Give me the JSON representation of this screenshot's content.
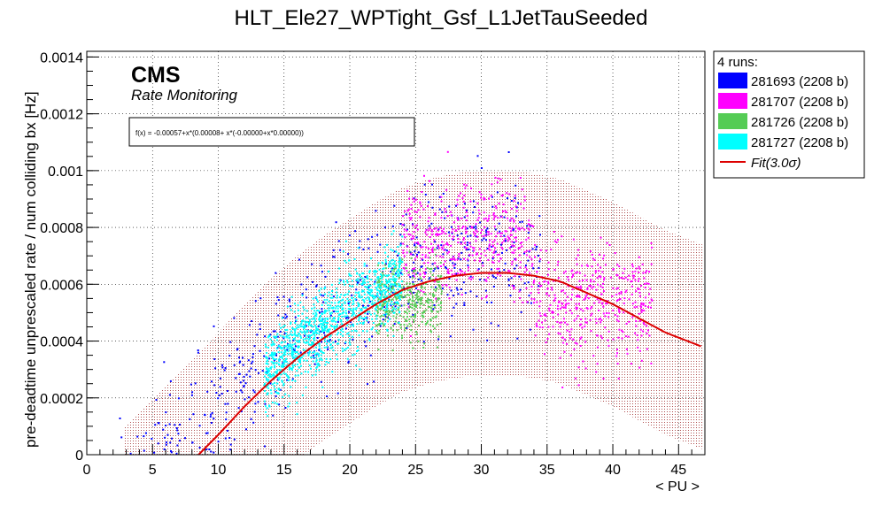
{
  "chart_data": {
    "type": "scatter",
    "title": "HLT_Ele27_WPTight_Gsf_L1JetTauSeeded",
    "xlabel": "< PU >",
    "ylabel": "pre-deadtime unprescaled rate / num colliding bx [Hz]",
    "xlim": [
      0,
      47
    ],
    "ylim": [
      0,
      0.00142
    ],
    "x_ticks": [
      0,
      5,
      10,
      15,
      20,
      25,
      30,
      35,
      40,
      45
    ],
    "x_tick_labels": [
      "0",
      "5",
      "10",
      "15",
      "20",
      "25",
      "30",
      "35",
      "40",
      "45"
    ],
    "y_ticks": [
      0,
      0.0002,
      0.0004,
      0.0006,
      0.0008,
      0.001,
      0.0012,
      0.0014
    ],
    "y_tick_labels": [
      "0",
      "0.0002",
      "0.0004",
      "0.0006",
      "0.0008",
      "0.001",
      "0.0012",
      "0.0014"
    ],
    "grid": true,
    "legend_position": "right-outside-top",
    "legend_header": "4 runs:",
    "series": [
      {
        "name": "281693 (2208 b)",
        "color": "#0000ff",
        "x_range": [
          2.5,
          34.5
        ],
        "y_center": 0.0006,
        "y_spread": 0.00012,
        "count": 700
      },
      {
        "name": "281707 (2208 b)",
        "color": "#ff00ff",
        "x_range": [
          24,
          43
        ],
        "y_center": 0.0007,
        "y_spread": 0.0001,
        "count": 900
      },
      {
        "name": "281726 (2208 b)",
        "color": "#55cc55",
        "x_range": [
          22,
          27
        ],
        "y_center": 0.00054,
        "y_spread": 7e-05,
        "count": 380
      },
      {
        "name": "281727 (2208 b)",
        "color": "#00ffff",
        "x_range": [
          13.5,
          24
        ],
        "y_center": 0.00042,
        "y_spread": 7e-05,
        "count": 1100
      }
    ],
    "fit": {
      "name": "Fit(3.0σ)",
      "color": "#dd0000",
      "formula_label": "f(x) = -0.00057+x*(0.00008+ x*(-0.00000+x*0.00000))",
      "points": [
        [
          8.5,
          0.0
        ],
        [
          10,
          7e-05
        ],
        [
          12,
          0.00017
        ],
        [
          14,
          0.00026
        ],
        [
          16,
          0.00034
        ],
        [
          18,
          0.00041
        ],
        [
          20,
          0.00047
        ],
        [
          22,
          0.00053
        ],
        [
          24,
          0.00058
        ],
        [
          26,
          0.00061
        ],
        [
          28,
          0.00063
        ],
        [
          30,
          0.00064
        ],
        [
          32,
          0.00064
        ],
        [
          34,
          0.00063
        ],
        [
          36,
          0.00061
        ],
        [
          38,
          0.00057
        ],
        [
          40,
          0.00053
        ],
        [
          42,
          0.00048
        ],
        [
          44,
          0.00043
        ],
        [
          46.8,
          0.00038
        ]
      ],
      "band_sigma": 3.0,
      "band_halfwidth": 0.00036
    },
    "cms_label": "CMS",
    "cms_sublabel": "Rate Monitoring"
  }
}
